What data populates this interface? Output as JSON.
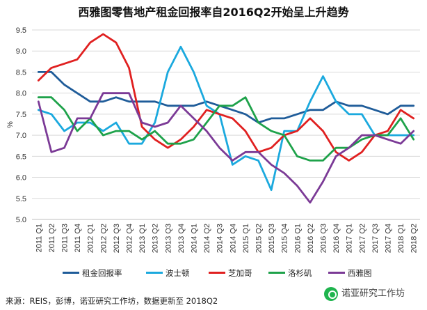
{
  "chart_data": {
    "type": "line",
    "title": "西雅图零售地产租金回报率自2016Q2开始呈上升趋势",
    "ylabel": "%",
    "xlabel": "",
    "ylim": [
      5.0,
      9.5
    ],
    "yticks": [
      "5.0",
      "5.5",
      "6.0",
      "6.5",
      "7.0",
      "7.5",
      "8.0",
      "8.5",
      "9.0",
      "9.5"
    ],
    "grid": true,
    "legend_position": "bottom",
    "categories": [
      "2011 Q1",
      "2011 Q2",
      "2011 Q3",
      "2011 Q4",
      "2012 Q1",
      "2012 Q2",
      "2012 Q3",
      "2012 Q4",
      "2013 Q1",
      "2013 Q2",
      "2013 Q3",
      "2013 Q4",
      "2014 Q1",
      "2014 Q2",
      "2014 Q3",
      "2014 Q4",
      "2015 Q1",
      "2015 Q2",
      "2015 Q3",
      "2015 Q4",
      "2016 Q1",
      "2016 Q2",
      "2016 Q3",
      "2016 Q4",
      "2017 Q1",
      "2017 Q2",
      "2017 Q3",
      "2017 Q4",
      "2018 Q1",
      "2018 Q2"
    ],
    "series": [
      {
        "name": "租金回报率",
        "color": "#1f5c99",
        "values": [
          8.5,
          8.5,
          8.2,
          8.0,
          7.8,
          7.8,
          7.9,
          7.8,
          7.8,
          7.8,
          7.7,
          7.7,
          7.7,
          7.8,
          7.7,
          7.6,
          7.5,
          7.3,
          7.4,
          7.4,
          7.5,
          7.6,
          7.6,
          7.8,
          7.7,
          7.7,
          7.6,
          7.5,
          7.7,
          7.7
        ]
      },
      {
        "name": "波士顿",
        "color": "#1ba9de",
        "values": [
          7.6,
          7.5,
          7.1,
          7.3,
          7.3,
          7.1,
          7.3,
          6.8,
          6.8,
          7.3,
          8.5,
          9.1,
          8.5,
          7.7,
          7.5,
          6.3,
          6.5,
          6.4,
          5.7,
          7.1,
          7.1,
          7.8,
          8.4,
          7.8,
          7.5,
          7.5,
          7.0,
          7.0,
          7.0,
          7.0
        ]
      },
      {
        "name": "芝加哥",
        "color": "#e02020",
        "values": [
          8.3,
          8.6,
          8.7,
          8.8,
          9.2,
          9.4,
          9.2,
          8.6,
          7.2,
          6.9,
          6.7,
          6.9,
          7.2,
          7.6,
          7.5,
          7.4,
          7.1,
          6.6,
          6.7,
          7.0,
          7.1,
          7.4,
          7.1,
          6.6,
          6.4,
          6.6,
          7.0,
          7.1,
          7.6,
          7.4
        ]
      },
      {
        "name": "洛杉矶",
        "color": "#1ea24a",
        "values": [
          7.9,
          7.9,
          7.6,
          7.1,
          7.4,
          7.0,
          7.1,
          7.1,
          6.9,
          7.1,
          6.8,
          6.8,
          6.9,
          7.3,
          7.7,
          7.7,
          7.9,
          7.3,
          7.1,
          7.0,
          6.5,
          6.4,
          6.4,
          6.7,
          6.7,
          6.9,
          7.0,
          7.0,
          7.4,
          6.9
        ]
      },
      {
        "name": "西雅图",
        "color": "#7b3a96",
        "values": [
          7.8,
          6.6,
          6.7,
          7.4,
          7.4,
          8.0,
          8.0,
          8.0,
          7.3,
          7.2,
          7.3,
          7.7,
          7.4,
          7.1,
          6.7,
          6.4,
          6.6,
          6.6,
          6.3,
          6.1,
          5.8,
          5.4,
          5.9,
          6.5,
          6.7,
          7.0,
          7.0,
          6.9,
          6.8,
          7.1
        ]
      }
    ]
  },
  "source": "来源：REIS，彭博，诺亚研究工作坊，数据更新至 2018Q2",
  "watermark": "诺亚研究工作坊"
}
